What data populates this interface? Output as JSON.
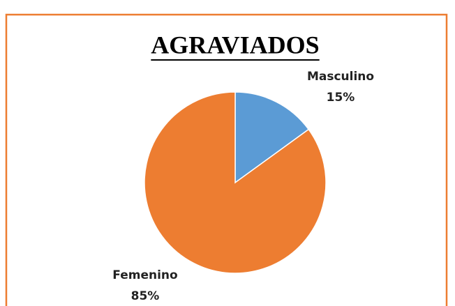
{
  "chart_data": {
    "type": "pie",
    "title": "AGRAVIADOS",
    "categories": [
      "Masculino",
      "Femenino"
    ],
    "values": [
      15,
      85
    ],
    "value_labels": [
      "15%",
      "85%"
    ],
    "colors": [
      "#5b9bd5",
      "#ed7d31"
    ]
  }
}
